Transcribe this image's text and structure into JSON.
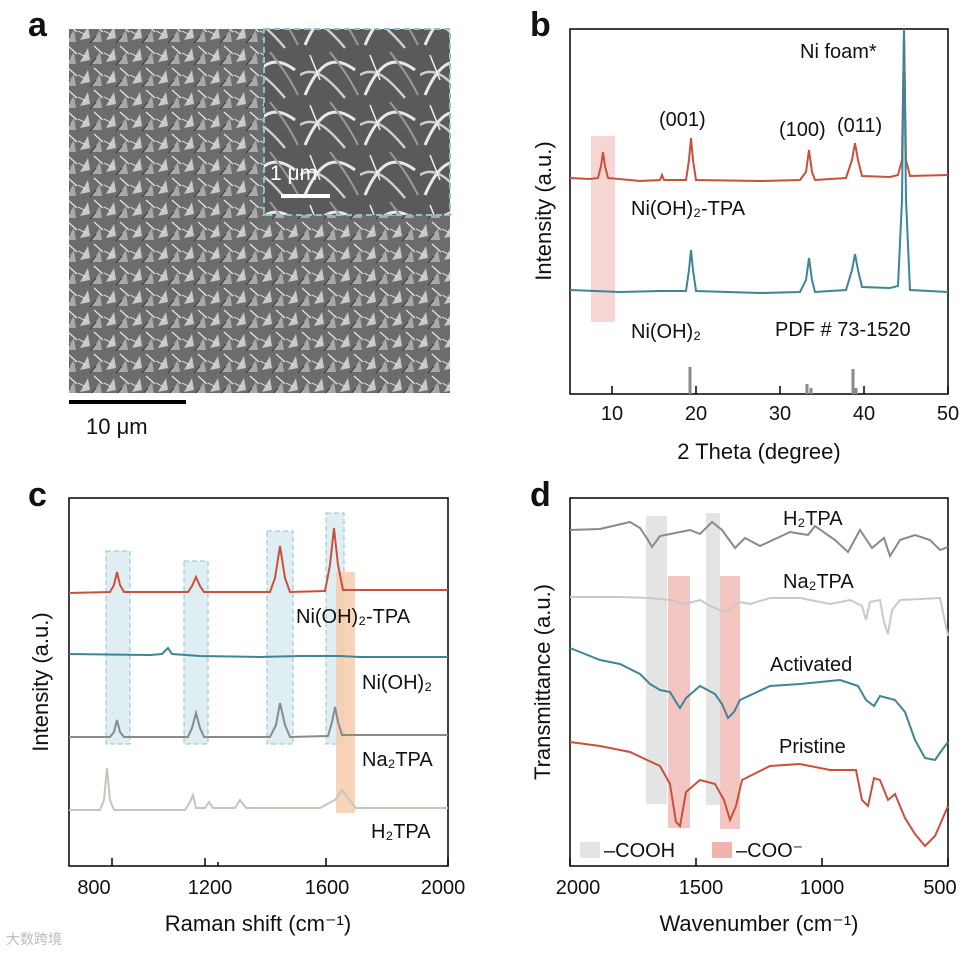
{
  "figure": {
    "panel_labels": [
      "a",
      "b",
      "c",
      "d"
    ],
    "watermark": "大数跨境"
  },
  "colors": {
    "red": "#c9503c",
    "teal": "#3e8596",
    "gray": "#8a8a8a",
    "lightgray": "#c9c9c9",
    "sage": "#c2c8b8",
    "pink_band": "#f2c4bf",
    "blue_band": "#dfeef3",
    "orange_band": "#f7c9a8",
    "gray_band": "#e4e4e4",
    "red_band": "#f0b3ad"
  },
  "panel_a": {
    "inset_scale": "1 μm",
    "main_scale": "10 μm"
  },
  "chart_data": [
    {
      "panel": "b",
      "type": "line",
      "xlabel": "2 Theta (degree)",
      "ylabel": "Intensity (a.u.)",
      "xlim": [
        5,
        50
      ],
      "xticks": [
        "10",
        "20",
        "30",
        "40",
        "50"
      ],
      "peak_labels": [
        "(001)",
        "(100)",
        "(011)"
      ],
      "annotations": [
        "Ni foam*",
        "PDF # 73-1520"
      ],
      "series": [
        {
          "name": "Ni(OH)₂-TPA",
          "peaks": [
            8.8,
            16.0,
            19.2,
            33.6,
            38.9,
            44.5
          ]
        },
        {
          "name": "Ni(OH)₂",
          "peaks": [
            19.2,
            33.6,
            38.9,
            44.5
          ]
        }
      ],
      "reference_sticks": [
        19.3,
        33.1,
        33.6,
        38.6,
        38.9
      ]
    },
    {
      "panel": "c",
      "type": "line",
      "xlabel": "Raman shift (cm⁻¹)",
      "ylabel": "Intensity (a.u.)",
      "xlim": [
        700,
        2000
      ],
      "xticks": [
        "800",
        "1200",
        "1600",
        "2000"
      ],
      "series": [
        {
          "name": "Ni(OH)₂-TPA",
          "peaks": [
            862,
            1137,
            1428,
            1612
          ]
        },
        {
          "name": "Ni(OH)₂",
          "peaks": [
            1040
          ]
        },
        {
          "name": "Na₂TPA",
          "peaks": [
            862,
            1137,
            1428,
            1612
          ]
        },
        {
          "name": "H₂TPA",
          "peaks": [
            830,
            1125,
            1180,
            1290,
            1630
          ]
        }
      ]
    },
    {
      "panel": "d",
      "type": "line",
      "xlabel": "Wavenumber (cm⁻¹)",
      "ylabel": "Transmittance (a.u.)",
      "xlim": [
        2000,
        500
      ],
      "xticks": [
        "2000",
        "1500",
        "1000",
        "500"
      ],
      "series": [
        {
          "name": "H₂TPA"
        },
        {
          "name": "Na₂TPA"
        },
        {
          "name": "Activated"
        },
        {
          "name": "Pristine"
        }
      ],
      "legend": [
        "–COOH",
        "–COO⁻"
      ]
    }
  ]
}
